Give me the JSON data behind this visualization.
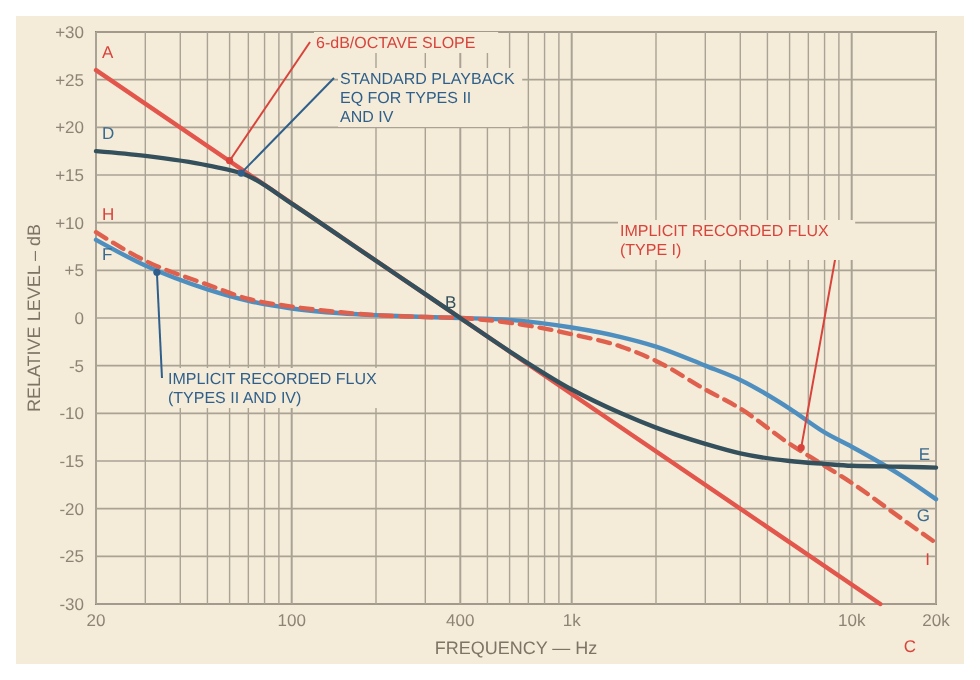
{
  "chart_data": {
    "type": "line",
    "xlabel": "FREQUENCY — Hz",
    "ylabel": "RELATIVE LEVEL – dB",
    "log": "x",
    "grid": true,
    "line_style": "solid",
    "xlim": [
      20,
      20000
    ],
    "ylim": [
      -30,
      30
    ],
    "xticks": [
      20,
      {
        "value": 30,
        "label": null
      },
      {
        "value": 40,
        "label": null
      },
      {
        "value": 50,
        "label": null
      },
      {
        "value": 60,
        "label": null
      },
      {
        "value": 70,
        "label": null
      },
      {
        "value": 80,
        "label": null
      },
      {
        "value": 90,
        "label": null
      },
      100,
      {
        "value": 200,
        "label": null
      },
      {
        "value": 300,
        "label": null
      },
      400,
      {
        "value": 500,
        "label": null
      },
      {
        "value": 600,
        "label": null
      },
      {
        "value": 700,
        "label": null
      },
      {
        "value": 800,
        "label": null
      },
      {
        "value": 900,
        "label": null
      },
      {
        "value": 1000,
        "label": "1k"
      },
      {
        "value": 2000,
        "label": null
      },
      {
        "value": 3000,
        "label": null
      },
      {
        "value": 4000,
        "label": null
      },
      {
        "value": 5000,
        "label": null
      },
      {
        "value": 6000,
        "label": null
      },
      {
        "value": 7000,
        "label": null
      },
      {
        "value": 8000,
        "label": null
      },
      {
        "value": 9000,
        "label": null
      },
      {
        "value": 10000,
        "label": "10k"
      },
      {
        "value": 20000,
        "label": "20k"
      }
    ],
    "yticks": [
      {
        "value": 30,
        "label": "+30"
      },
      {
        "value": 25,
        "label": "+25"
      },
      {
        "value": 20,
        "label": "+20"
      },
      {
        "value": 15,
        "label": "+15"
      },
      {
        "value": 10,
        "label": "+10"
      },
      {
        "value": 5,
        "label": "+5"
      },
      0,
      -5,
      -10,
      -15,
      -20,
      -25,
      -30
    ],
    "series": [
      {
        "color": "#e2564c",
        "x": [
          20,
          12650
        ],
        "values": [
          26,
          -30
        ]
      },
      {
        "color": "#4f8fbf",
        "x": [
          20,
          30,
          50,
          70,
          100,
          150,
          200,
          300,
          400,
          600,
          1000,
          1500,
          2000,
          3000,
          4000,
          6000,
          8000,
          10000,
          15000,
          20000
        ],
        "values": [
          8.2,
          5.5,
          3,
          1.8,
          1,
          0.5,
          0.3,
          0.1,
          0,
          -0.2,
          -1,
          -2,
          -3,
          -5,
          -6.5,
          -9.5,
          -12,
          -13.5,
          -16.5,
          -19
        ]
      },
      {
        "color": "#e0604e",
        "line_style": "dashed",
        "x": [
          20,
          30,
          50,
          70,
          100,
          150,
          200,
          300,
          400,
          600,
          1000,
          1500,
          2000,
          3000,
          4000,
          6000,
          8000,
          10000,
          15000,
          20000
        ],
        "values": [
          9,
          6,
          3.5,
          2,
          1.2,
          0.6,
          0.3,
          0.1,
          0,
          -0.5,
          -1.7,
          -3,
          -4.5,
          -7.5,
          -9.5,
          -13.2,
          -15.5,
          -17.3,
          -21,
          -23.6
        ]
      },
      {
        "color": "#34505c",
        "x": [
          20,
          30,
          50,
          70,
          100,
          150,
          200,
          300,
          400,
          600,
          1000,
          1500,
          2000,
          3000,
          4000,
          6000,
          8000,
          10000,
          15000,
          20000
        ],
        "values": [
          17.5,
          17,
          16,
          14.9,
          12,
          8.5,
          6,
          2.5,
          0,
          -3.5,
          -7.5,
          -10,
          -11.5,
          -13.2,
          -14.2,
          -15,
          -15.3,
          -15.5,
          -15.6,
          -15.7
        ]
      }
    ],
    "annotations": [
      {
        "text": "A",
        "x": 20,
        "y": 26
      },
      {
        "text": "B",
        "x": 400,
        "y": 0
      },
      "C",
      {
        "text": "D",
        "x": 20,
        "y": 17.5
      },
      {
        "text": "E",
        "x": 20000,
        "y": -15.7
      },
      {
        "text": "F",
        "x": 20,
        "y": 8.2
      },
      {
        "text": "G",
        "x": 20000,
        "y": -19
      },
      {
        "text": "H",
        "x": 20,
        "y": 9
      },
      {
        "text": "I",
        "x": 20000,
        "y": -23.6
      },
      {
        "text": "6-dB/OCTAVE SLOPE",
        "x": 60,
        "y": 16.5
      },
      {
        "text": "STANDARD PLAYBACK EQ FOR TYPES II AND IV",
        "x": 66,
        "y": 15.2
      },
      {
        "text": "IMPLICIT RECORDED FLUX (TYPE I)",
        "x": 6600,
        "y": -13.6
      },
      {
        "text": "IMPLICIT RECORDED FLUX (TYPES II AND IV)",
        "x": 33,
        "y": 4.8
      }
    ]
  }
}
